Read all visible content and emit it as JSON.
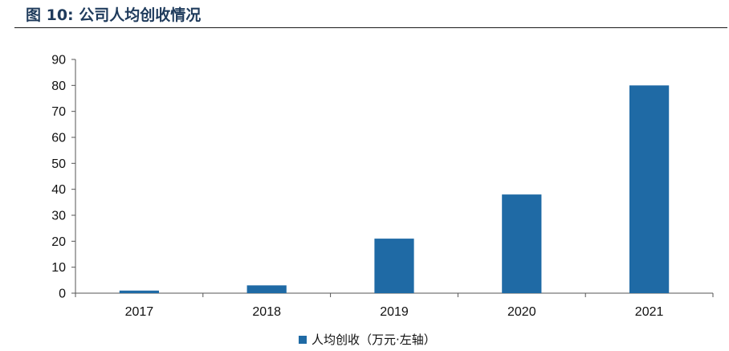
{
  "figure": {
    "label": "图 10:",
    "title": "公司人均创收情况"
  },
  "chart_data": {
    "type": "bar",
    "categories": [
      "2017",
      "2018",
      "2019",
      "2020",
      "2021"
    ],
    "series": [
      {
        "name": "人均创收（万元·左轴）",
        "values": [
          1,
          3,
          21,
          38,
          80
        ],
        "color": "#1f6aa5"
      }
    ],
    "yticks": [
      "0",
      "10",
      "20",
      "30",
      "40",
      "50",
      "60",
      "70",
      "80",
      "90"
    ],
    "ylim": [
      0,
      90
    ],
    "grid": false,
    "legend_position": "bottom-center"
  }
}
